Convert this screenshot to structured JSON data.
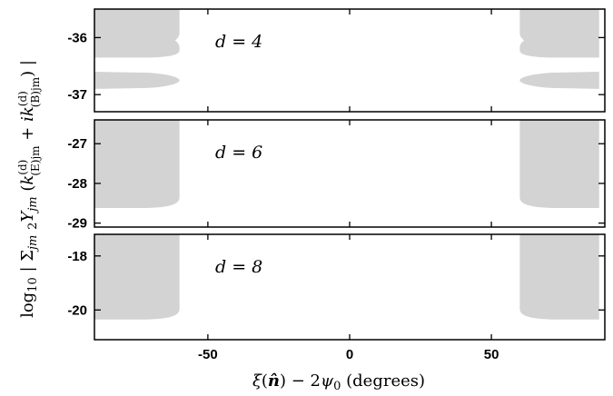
{
  "chart_data": {
    "type": "area",
    "xlabel": "ξ(n̂) − 2ψ₀ (degrees)",
    "ylabel": "log₁₀ | Σjm ₂Yjm (k(d)(E)jm + ik(d)(B)jm) |",
    "xlim": [
      -90,
      90
    ],
    "xticks": [
      -50,
      0,
      50
    ],
    "xtick_labels": [
      "-50",
      "0",
      "50"
    ],
    "panels": [
      {
        "label": "d = 4",
        "ylim": [
          -37.3,
          -35.5
        ],
        "yticks": [
          -36,
          -37
        ],
        "ytick_labels": [
          "-36",
          "-37"
        ],
        "regions": [
          {
            "x": [
              -90,
              -60
            ],
            "y": [
              -36.35,
              -35.5
            ],
            "notch": -36.05
          },
          {
            "x": [
              -90,
              -60
            ],
            "y": [
              -36.9,
              -36.6
            ],
            "shape": "tapered-band"
          },
          {
            "x": [
              60,
              88
            ],
            "y": [
              -36.35,
              -35.5
            ],
            "notch": -36.05
          },
          {
            "x": [
              60,
              88
            ],
            "y": [
              -36.9,
              -36.6
            ],
            "shape": "tapered-band"
          }
        ]
      },
      {
        "label": "d = 6",
        "ylim": [
          -29.1,
          -26.4
        ],
        "yticks": [
          -27,
          -28,
          -29
        ],
        "ytick_labels": [
          "-27",
          "-28",
          "-29"
        ],
        "regions": [
          {
            "x": [
              -90,
              -60
            ],
            "y": [
              -28.62,
              -26.4
            ]
          },
          {
            "x": [
              60,
              88
            ],
            "y": [
              -28.62,
              -26.4
            ]
          }
        ]
      },
      {
        "label": "d = 8",
        "ylim": [
          -21.1,
          -17.2
        ],
        "yticks": [
          -18,
          -20
        ],
        "ytick_labels": [
          "-18",
          "-20"
        ],
        "regions": [
          {
            "x": [
              -90,
              -60
            ],
            "y": [
              -20.35,
              -17.2
            ]
          },
          {
            "x": [
              60,
              88
            ],
            "y": [
              -20.35,
              -17.2
            ]
          }
        ]
      }
    ],
    "fill_color": "#d3d3d3"
  }
}
